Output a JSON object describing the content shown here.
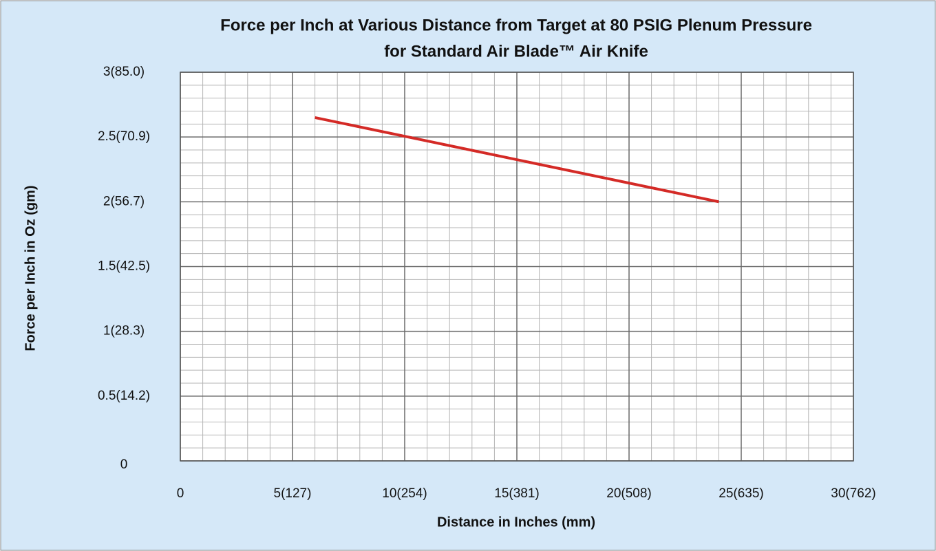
{
  "chart_data": {
    "type": "line",
    "title": [
      "Force per Inch at Various Distance from Target at 80 PSIG  Plenum Pressure",
      "for Standard Air Blade™ Air Knife"
    ],
    "x_label": "Distance in Inches (mm)",
    "y_label": "Force per Inch in Oz (gm)",
    "x": [
      6,
      24
    ],
    "series": [
      {
        "color": "#d42a26",
        "values": [
          2.65,
          2.0
        ]
      }
    ],
    "xlim": [
      0,
      30
    ],
    "xticks": [
      0,
      {
        "value": 5,
        "label": "5(127)"
      },
      {
        "value": 10,
        "label": "10(254)"
      },
      {
        "value": 15,
        "label": "15(381)"
      },
      {
        "value": 20,
        "label": "20(508)"
      },
      {
        "value": 25,
        "label": "25(635)"
      },
      {
        "value": 30,
        "label": "30(762)"
      }
    ],
    "ylim": [
      0,
      3
    ],
    "yticks": [
      0,
      {
        "value": 0.5,
        "label": "0.5(14.2)"
      },
      {
        "value": 1,
        "label": "1(28.3)"
      },
      {
        "value": 1.5,
        "label": "1.5(42.5)"
      },
      {
        "value": 2,
        "label": "2(56.7)"
      },
      {
        "value": 2.5,
        "label": "2.5(70.9)"
      },
      {
        "value": 3,
        "label": "3(85.0)"
      }
    ],
    "grid": true
  }
}
